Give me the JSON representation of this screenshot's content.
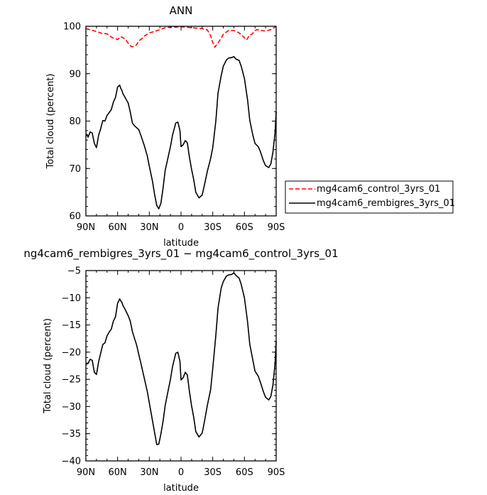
{
  "chart_data": [
    {
      "type": "line",
      "title": "ANN",
      "xlabel": "latitude",
      "ylabel": "Total cloud (percent)",
      "xlim": [
        90,
        -90
      ],
      "ylim": [
        60,
        100
      ],
      "xticks": [
        90,
        60,
        30,
        0,
        -30,
        -60,
        -90
      ],
      "xtick_labels": [
        "90N",
        "60N",
        "30N",
        "0",
        "30S",
        "60S",
        "90S"
      ],
      "yticks": [
        60,
        70,
        80,
        90,
        100
      ],
      "ytick_labels": [
        "60",
        "70",
        "80",
        "90",
        "100"
      ],
      "legend_position": "right",
      "series": [
        {
          "name": "mg4cam6_control_3yrs_01",
          "color": "#ff0000",
          "style": "dashed",
          "x": [
            90,
            85,
            80,
            75,
            70,
            65,
            60,
            57,
            55,
            52,
            50,
            47,
            45,
            42,
            40,
            37,
            35,
            30,
            25,
            20,
            15,
            10,
            5,
            0,
            -5,
            -10,
            -15,
            -20,
            -25,
            -28,
            -30,
            -32,
            -35,
            -38,
            -40,
            -43,
            -45,
            -50,
            -55,
            -60,
            -62,
            -65,
            -67,
            -70,
            -72,
            -75,
            -80,
            -85,
            -90
          ],
          "values": [
            99.5,
            99.2,
            98.9,
            98.5,
            98.4,
            97.6,
            97.2,
            97.8,
            97.6,
            97.1,
            96.4,
            95.7,
            95.7,
            96.1,
            96.9,
            97.4,
            97.9,
            98.6,
            98.9,
            99.3,
            99.7,
            99.8,
            99.8,
            99.9,
            99.8,
            99.7,
            99.6,
            99.5,
            99.2,
            98.0,
            96.6,
            95.6,
            96.5,
            97.5,
            98.3,
            98.8,
            99.1,
            99.1,
            98.6,
            97.6,
            97.1,
            98.2,
            98.3,
            99.1,
            99.3,
            99.1,
            99.0,
            99.3,
            100.0
          ]
        },
        {
          "name": "mg4cam6_rembigres_3yrs_01",
          "color": "#000000",
          "style": "solid",
          "x": [
            90,
            89,
            88,
            86,
            84,
            82,
            80,
            78,
            76,
            74,
            72,
            70,
            68,
            66,
            64,
            62,
            60,
            58,
            57,
            56,
            55,
            53,
            50,
            48,
            46,
            44,
            42,
            40,
            38,
            35,
            32,
            30,
            27,
            25,
            23,
            21,
            19,
            17,
            15,
            12,
            10,
            8,
            5,
            3,
            1,
            0,
            -2,
            -4,
            -6,
            -8,
            -10,
            -12,
            -14,
            -17,
            -20,
            -22,
            -25,
            -28,
            -30,
            -33,
            -35,
            -38,
            -40,
            -43,
            -45,
            -48,
            -50,
            -52,
            -55,
            -57,
            -60,
            -63,
            -65,
            -68,
            -70,
            -73,
            -75,
            -78,
            -80,
            -83,
            -85,
            -87,
            -89,
            -90
          ],
          "values": [
            76.8,
            77.2,
            76.6,
            77.7,
            77.5,
            75.3,
            74.4,
            77.0,
            78.4,
            80.1,
            80.0,
            81.2,
            81.8,
            82.4,
            84.0,
            85.0,
            87.2,
            87.6,
            86.9,
            86.5,
            85.8,
            85.0,
            83.8,
            81.9,
            79.6,
            79.0,
            78.6,
            78.2,
            77.0,
            75.0,
            72.7,
            70.5,
            67.3,
            64.5,
            62.2,
            61.5,
            62.7,
            65.9,
            69.6,
            72.6,
            74.6,
            77.1,
            79.6,
            79.8,
            78.0,
            74.6,
            75.0,
            75.9,
            75.4,
            72.3,
            69.8,
            67.6,
            65.0,
            63.8,
            64.4,
            66.4,
            69.5,
            72.1,
            74.4,
            80.1,
            85.9,
            89.6,
            91.6,
            92.9,
            93.3,
            93.4,
            93.6,
            93.1,
            92.8,
            91.5,
            89.0,
            84.4,
            80.2,
            77.0,
            75.3,
            74.6,
            73.6,
            71.6,
            70.6,
            70.2,
            71.0,
            73.5,
            77.6,
            82.0
          ]
        }
      ]
    },
    {
      "type": "line",
      "title": "ng4cam6_rembigres_3yrs_01 − mg4cam6_control_3yrs_01",
      "xlabel": "latitude",
      "ylabel": "Total cloud (percent)",
      "xlim": [
        90,
        -90
      ],
      "ylim": [
        -40,
        -5
      ],
      "xticks": [
        90,
        60,
        30,
        0,
        -30,
        -60,
        -90
      ],
      "xtick_labels": [
        "90N",
        "60N",
        "30N",
        "0",
        "30S",
        "60S",
        "90S"
      ],
      "yticks": [
        -40,
        -35,
        -30,
        -25,
        -20,
        -15,
        -10,
        -5
      ],
      "ytick_labels": [
        "−40",
        "−35",
        "−30",
        "−25",
        "−20",
        "−15",
        "−10",
        "−5"
      ],
      "series": [
        {
          "color": "#000000",
          "style": "solid",
          "x": [
            90,
            89,
            88,
            86,
            84,
            82,
            80,
            78,
            76,
            74,
            72,
            70,
            68,
            66,
            64,
            62,
            60,
            58,
            57,
            56,
            55,
            53,
            50,
            48,
            46,
            44,
            42,
            40,
            38,
            35,
            32,
            30,
            27,
            25,
            23,
            21,
            19,
            17,
            15,
            12,
            10,
            8,
            5,
            3,
            1,
            0,
            -2,
            -4,
            -6,
            -8,
            -10,
            -12,
            -14,
            -17,
            -20,
            -22,
            -25,
            -28,
            -30,
            -33,
            -35,
            -38,
            -40,
            -43,
            -45,
            -48,
            -50,
            -52,
            -55,
            -57,
            -60,
            -63,
            -65,
            -68,
            -70,
            -73,
            -75,
            -78,
            -80,
            -83,
            -85,
            -87,
            -89,
            -90
          ],
          "values": [
            -22.4,
            -22.1,
            -22.1,
            -21.3,
            -21.5,
            -23.7,
            -24.1,
            -21.8,
            -20.2,
            -18.6,
            -18.3,
            -17.0,
            -16.3,
            -15.8,
            -14.3,
            -13.5,
            -11.0,
            -10.2,
            -10.6,
            -10.8,
            -11.4,
            -12.1,
            -13.3,
            -14.3,
            -16.2,
            -17.5,
            -18.7,
            -20.4,
            -22.0,
            -24.6,
            -27.2,
            -29.3,
            -32.6,
            -34.8,
            -37.0,
            -36.9,
            -35.0,
            -32.7,
            -29.8,
            -26.9,
            -25.0,
            -22.6,
            -20.2,
            -20.0,
            -21.7,
            -25.1,
            -24.7,
            -23.7,
            -24.2,
            -27.3,
            -29.9,
            -32.0,
            -34.6,
            -35.6,
            -34.9,
            -32.9,
            -29.7,
            -26.9,
            -23.0,
            -16.8,
            -11.9,
            -8.2,
            -7.0,
            -6.0,
            -5.8,
            -5.7,
            -5.4,
            -5.9,
            -6.4,
            -7.6,
            -10.0,
            -14.5,
            -18.5,
            -21.5,
            -23.5,
            -24.4,
            -25.5,
            -27.3,
            -28.3,
            -28.8,
            -28.1,
            -26.0,
            -22.1,
            -18.0
          ]
        }
      ]
    }
  ]
}
